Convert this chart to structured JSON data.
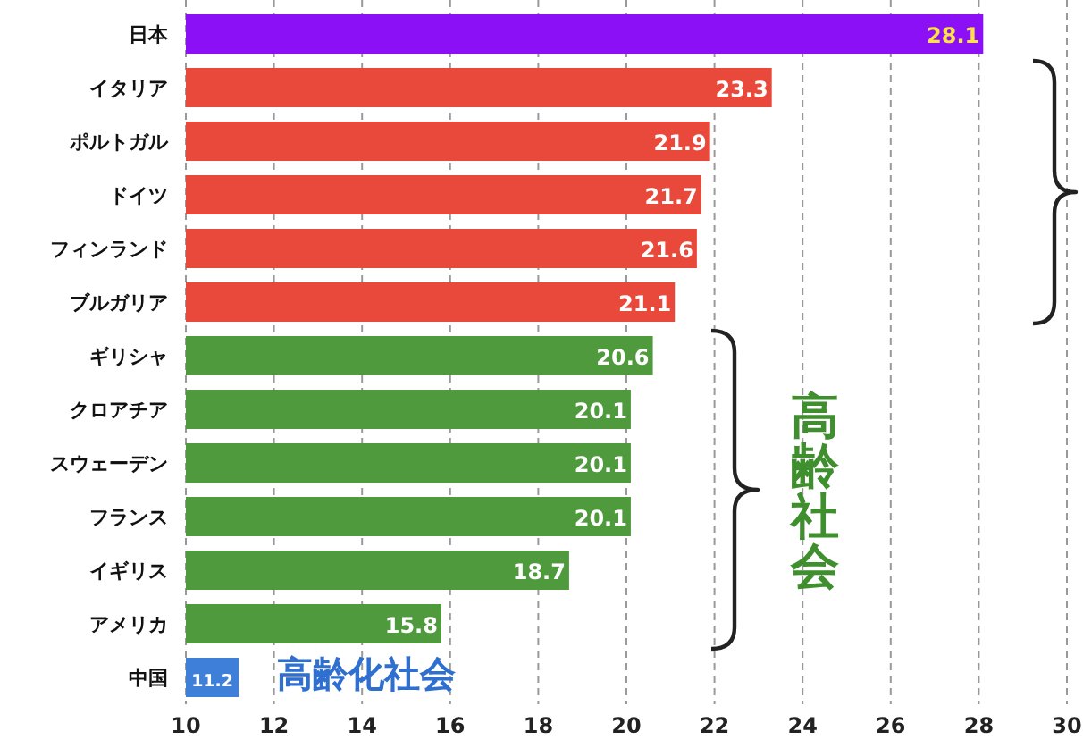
{
  "chart_data": {
    "type": "bar",
    "orientation": "horizontal",
    "categories": [
      "日本",
      "イタリア",
      "ポルトガル",
      "ドイツ",
      "フィンランド",
      "ブルガリア",
      "ギリシャ",
      "クロアチア",
      "スウェーデン",
      "フランス",
      "イギリス",
      "アメリカ",
      "中国"
    ],
    "values": [
      28.1,
      23.3,
      21.9,
      21.7,
      21.6,
      21.1,
      20.6,
      20.1,
      20.1,
      20.1,
      18.7,
      15.8,
      11.2
    ],
    "colors": [
      "#8b10f5",
      "#e8493b",
      "#e8493b",
      "#e8493b",
      "#e8493b",
      "#e8493b",
      "#4f9a3c",
      "#4f9a3c",
      "#4f9a3c",
      "#4f9a3c",
      "#4f9a3c",
      "#4f9a3c",
      "#3d7fd9"
    ],
    "xlim": [
      10,
      30
    ],
    "xticks": [
      10,
      12,
      14,
      16,
      18,
      20,
      22,
      24,
      26,
      28,
      30
    ],
    "grid": "x",
    "data_labels": true,
    "annotations": [
      "高齢社会",
      "高齢化社会"
    ]
  }
}
